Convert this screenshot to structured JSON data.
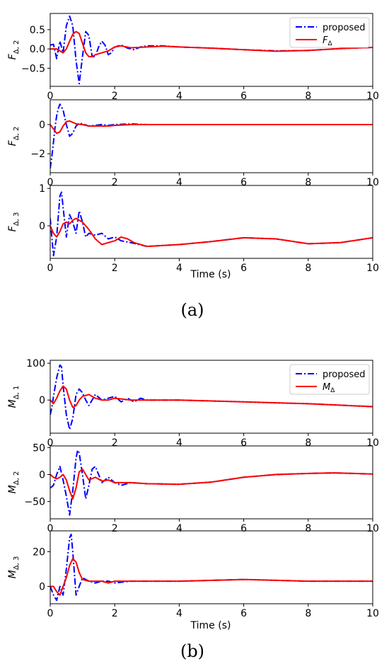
{
  "figures": [
    {
      "caption": "(a)",
      "xlabel": "Time (s)",
      "legend": {
        "position": "top-right",
        "entries": [
          "proposed",
          "F_Δ"
        ]
      },
      "panels": [
        {
          "ylabel_base": "F",
          "ylabel_sub": "Δ, 2",
          "yticks": [
            -0.5,
            0,
            0.5
          ],
          "yticklabels": [
            "−0.5",
            "0.0",
            "0.5"
          ],
          "ylim": [
            -0.97,
            0.92
          ]
        },
        {
          "ylabel_base": "F",
          "ylabel_sub": "Δ, 2",
          "yticks": [
            -2,
            0
          ],
          "yticklabels": [
            "−2",
            "0"
          ],
          "ylim": [
            -3.3,
            1.7
          ]
        },
        {
          "ylabel_base": "F",
          "ylabel_sub": "Δ, 3",
          "yticks": [
            0,
            1
          ],
          "yticklabels": [
            "0",
            "1"
          ],
          "ylim": [
            -0.87,
            1.08
          ]
        }
      ]
    },
    {
      "caption": "(b)",
      "xlabel": "Time (s)",
      "legend": {
        "position": "top-right",
        "entries": [
          "proposed",
          "M_Δ"
        ]
      },
      "panels": [
        {
          "ylabel_base": "M",
          "ylabel_sub": "Δ, 1",
          "yticks": [
            0,
            100
          ],
          "yticklabels": [
            "0",
            "100"
          ],
          "ylim": [
            -90,
            108
          ]
        },
        {
          "ylabel_base": "M",
          "ylabel_sub": "Δ, 2",
          "yticks": [
            -50,
            0,
            50
          ],
          "yticklabels": [
            "−50",
            "0",
            "50"
          ],
          "ylim": [
            -82,
            53
          ]
        },
        {
          "ylabel_base": "M",
          "ylabel_sub": "Δ, 3",
          "yticks": [
            0,
            20
          ],
          "yticklabels": [
            "0",
            "20"
          ],
          "ylim": [
            -10,
            32
          ]
        }
      ]
    }
  ],
  "chart_data": [
    {
      "type": "line",
      "figure": "a",
      "panel": 1,
      "xlim": [
        0,
        10
      ],
      "ylim": [
        -0.97,
        0.92
      ],
      "xticks": [
        0,
        2,
        4,
        6,
        8,
        10
      ],
      "series": [
        {
          "name": "proposed",
          "color": "#0000ff",
          "style": "dashdot",
          "x": [
            0,
            0.1,
            0.2,
            0.3,
            0.4,
            0.5,
            0.6,
            0.7,
            0.8,
            0.9,
            1.0,
            1.1,
            1.2,
            1.3,
            1.4,
            1.5,
            1.6,
            1.7,
            1.8,
            1.9,
            2.0,
            2.2,
            2.4,
            2.6,
            2.8,
            3.0,
            3.5,
            4.0,
            5.0,
            6.0,
            7.0,
            8.0,
            9.0,
            10.0
          ],
          "y": [
            0.1,
            0.12,
            -0.25,
            0.2,
            -0.1,
            0.6,
            0.85,
            0.6,
            -0.3,
            -0.9,
            -0.2,
            0.45,
            0.35,
            -0.2,
            -0.2,
            0.05,
            0.2,
            0.1,
            -0.15,
            -0.1,
            0.05,
            0.1,
            0.02,
            -0.02,
            0.05,
            0.08,
            0.08,
            0.05,
            0.02,
            -0.02,
            -0.05,
            -0.04,
            0.01,
            0.04
          ]
        },
        {
          "name": "F_Δ",
          "color": "#ff0000",
          "style": "solid",
          "x": [
            0,
            0.2,
            0.4,
            0.5,
            0.6,
            0.7,
            0.8,
            0.9,
            1.0,
            1.1,
            1.2,
            1.3,
            1.4,
            1.6,
            1.8,
            2.0,
            2.2,
            2.5,
            3.0,
            3.5,
            4.0,
            5.0,
            6.0,
            7.0,
            8.0,
            9.0,
            10.0
          ],
          "y": [
            0,
            0,
            -0.1,
            0,
            0.2,
            0.38,
            0.45,
            0.4,
            0.15,
            -0.1,
            -0.2,
            -0.2,
            -0.15,
            -0.1,
            -0.05,
            0.05,
            0.08,
            0.03,
            0.05,
            0.07,
            0.05,
            0.02,
            -0.02,
            -0.06,
            -0.04,
            0.01,
            0.04
          ]
        }
      ]
    },
    {
      "type": "line",
      "figure": "a",
      "panel": 2,
      "xlim": [
        0,
        10
      ],
      "ylim": [
        -3.3,
        1.7
      ],
      "xticks": [
        0,
        2,
        4,
        6,
        8,
        10
      ],
      "series": [
        {
          "name": "proposed",
          "color": "#0000ff",
          "style": "dashdot",
          "x": [
            0,
            0.05,
            0.1,
            0.15,
            0.2,
            0.25,
            0.3,
            0.4,
            0.5,
            0.6,
            0.7,
            0.8,
            0.9,
            1.0,
            1.2,
            1.4,
            1.6,
            1.8,
            2.0,
            2.5,
            3.0,
            4.0,
            6.0,
            8.0,
            10.0
          ],
          "y": [
            -3.0,
            -2.2,
            -1.2,
            -0.2,
            0.6,
            1.1,
            1.4,
            1.0,
            0.0,
            -0.8,
            -0.6,
            -0.1,
            0.1,
            0.05,
            -0.1,
            -0.05,
            0.0,
            -0.05,
            0.0,
            0.05,
            0.0,
            0.0,
            0.0,
            0.0,
            0.0
          ]
        },
        {
          "name": "F_Δ",
          "color": "#ff0000",
          "style": "solid",
          "x": [
            0,
            0.1,
            0.2,
            0.3,
            0.4,
            0.5,
            0.6,
            0.7,
            0.8,
            1.0,
            1.2,
            1.4,
            1.6,
            1.8,
            2.0,
            2.5,
            3.0,
            4.0,
            6.0,
            8.0,
            10.0
          ],
          "y": [
            0,
            -0.3,
            -0.6,
            -0.5,
            -0.1,
            0.2,
            0.25,
            0.15,
            0.05,
            0.0,
            -0.1,
            -0.1,
            -0.1,
            -0.1,
            -0.05,
            0.0,
            0.0,
            0.0,
            0.0,
            0.0,
            0.0
          ]
        }
      ]
    },
    {
      "type": "line",
      "figure": "a",
      "panel": 3,
      "xlim": [
        0,
        10
      ],
      "ylim": [
        -0.87,
        1.08
      ],
      "xticks": [
        0,
        2,
        4,
        6,
        8,
        10
      ],
      "series": [
        {
          "name": "proposed",
          "color": "#0000ff",
          "style": "dashdot",
          "x": [
            0,
            0.1,
            0.2,
            0.3,
            0.35,
            0.4,
            0.5,
            0.6,
            0.7,
            0.8,
            0.9,
            1.0,
            1.1,
            1.2,
            1.4,
            1.6,
            1.8,
            2.0,
            2.2,
            2.5,
            3.0,
            4.0,
            5.0,
            6.0,
            7.0,
            8.0,
            9.0,
            10.0
          ],
          "y": [
            0.2,
            -0.8,
            -0.3,
            0.8,
            0.9,
            0.5,
            -0.3,
            0.3,
            0.1,
            -0.2,
            0.4,
            0.1,
            -0.3,
            -0.2,
            -0.25,
            -0.2,
            -0.35,
            -0.3,
            -0.4,
            -0.45,
            -0.55,
            -0.5,
            -0.42,
            -0.32,
            -0.35,
            -0.48,
            -0.45,
            -0.32
          ]
        },
        {
          "name": "F_Δ",
          "color": "#ff0000",
          "style": "solid",
          "x": [
            0,
            0.1,
            0.2,
            0.3,
            0.4,
            0.5,
            0.6,
            0.7,
            0.8,
            0.9,
            1.0,
            1.2,
            1.4,
            1.6,
            1.8,
            2.0,
            2.2,
            2.4,
            2.6,
            3.0,
            4.0,
            5.0,
            6.0,
            7.0,
            8.0,
            9.0,
            10.0
          ],
          "y": [
            0,
            -0.2,
            -0.3,
            -0.15,
            0.05,
            0.1,
            0.05,
            0.15,
            0.2,
            0.15,
            0.1,
            -0.1,
            -0.35,
            -0.5,
            -0.45,
            -0.4,
            -0.3,
            -0.35,
            -0.45,
            -0.55,
            -0.5,
            -0.42,
            -0.32,
            -0.35,
            -0.48,
            -0.45,
            -0.32
          ]
        }
      ]
    },
    {
      "type": "line",
      "figure": "b",
      "panel": 1,
      "xlim": [
        0,
        10
      ],
      "ylim": [
        -90,
        108
      ],
      "xticks": [
        0,
        2,
        4,
        6,
        8,
        10
      ],
      "series": [
        {
          "name": "proposed",
          "color": "#0000ff",
          "style": "dashdot",
          "x": [
            0,
            0.05,
            0.1,
            0.2,
            0.3,
            0.35,
            0.4,
            0.5,
            0.6,
            0.7,
            0.8,
            0.9,
            1.0,
            1.1,
            1.2,
            1.4,
            1.6,
            1.8,
            2.0,
            2.2,
            2.4,
            2.6,
            2.8,
            3.0,
            4.0,
            6.0,
            8.0,
            10.0
          ],
          "y": [
            -40,
            -20,
            10,
            60,
            95,
            90,
            40,
            -40,
            -80,
            -50,
            15,
            30,
            20,
            0,
            -15,
            15,
            0,
            5,
            10,
            -5,
            5,
            -5,
            5,
            0,
            0,
            -5,
            -10,
            -18
          ]
        },
        {
          "name": "M_Δ",
          "color": "#ff0000",
          "style": "solid",
          "x": [
            0,
            0.1,
            0.2,
            0.3,
            0.4,
            0.5,
            0.6,
            0.7,
            0.8,
            0.9,
            1.0,
            1.2,
            1.4,
            1.6,
            1.8,
            2.0,
            2.5,
            3.0,
            4.0,
            6.0,
            8.0,
            10.0
          ],
          "y": [
            0,
            -10,
            5,
            25,
            38,
            30,
            0,
            -20,
            -15,
            0,
            10,
            15,
            5,
            0,
            0,
            5,
            0,
            0,
            0,
            -5,
            -10,
            -18
          ]
        }
      ]
    },
    {
      "type": "line",
      "figure": "b",
      "panel": 2,
      "xlim": [
        0,
        10
      ],
      "ylim": [
        -82,
        53
      ],
      "xticks": [
        0,
        2,
        4,
        6,
        8,
        10
      ],
      "series": [
        {
          "name": "proposed",
          "color": "#0000ff",
          "style": "dashdot",
          "x": [
            0,
            0.1,
            0.2,
            0.3,
            0.4,
            0.5,
            0.6,
            0.7,
            0.8,
            0.85,
            0.9,
            1.0,
            1.1,
            1.2,
            1.3,
            1.4,
            1.5,
            1.6,
            1.7,
            1.8,
            2.0,
            2.2,
            2.5,
            3.0,
            4.0,
            5.0,
            6.0,
            7.0,
            8.0,
            8.8,
            10.0
          ],
          "y": [
            -25,
            -20,
            0,
            15,
            -10,
            -40,
            -75,
            -30,
            30,
            45,
            40,
            0,
            -45,
            -20,
            10,
            15,
            0,
            -15,
            -10,
            -5,
            -15,
            -20,
            -15,
            -17,
            -18,
            -14,
            -5,
            0,
            2,
            3,
            1
          ]
        },
        {
          "name": "M_Δ",
          "color": "#ff0000",
          "style": "solid",
          "x": [
            0,
            0.1,
            0.2,
            0.3,
            0.4,
            0.5,
            0.6,
            0.7,
            0.8,
            0.9,
            1.0,
            1.2,
            1.4,
            1.6,
            1.8,
            2.0,
            2.5,
            3.0,
            4.0,
            5.0,
            6.0,
            7.0,
            8.0,
            8.8,
            10.0
          ],
          "y": [
            0,
            -5,
            -8,
            -5,
            0,
            -10,
            -30,
            -45,
            -25,
            5,
            10,
            -10,
            -5,
            -12,
            -10,
            -15,
            -15,
            -17,
            -18,
            -14,
            -5,
            0,
            2,
            3,
            1
          ]
        }
      ]
    },
    {
      "type": "line",
      "figure": "b",
      "panel": 3,
      "xlim": [
        0,
        10
      ],
      "ylim": [
        -10,
        32
      ],
      "xticks": [
        0,
        2,
        4,
        6,
        8,
        10
      ],
      "series": [
        {
          "name": "proposed",
          "color": "#0000ff",
          "style": "dashdot",
          "x": [
            0,
            0.1,
            0.2,
            0.3,
            0.4,
            0.5,
            0.6,
            0.65,
            0.7,
            0.8,
            0.9,
            1.0,
            1.2,
            1.4,
            1.6,
            1.8,
            2.0,
            2.5,
            3.0,
            4.0,
            6.0,
            8.0,
            10.0
          ],
          "y": [
            0,
            -5,
            -8,
            0,
            -5,
            10,
            28,
            30,
            20,
            -5,
            0,
            5,
            3,
            2,
            3,
            3,
            2,
            3,
            3,
            3,
            4,
            3,
            3
          ]
        },
        {
          "name": "M_Δ",
          "color": "#ff0000",
          "style": "solid",
          "x": [
            0,
            0.1,
            0.2,
            0.3,
            0.4,
            0.5,
            0.6,
            0.7,
            0.8,
            0.9,
            1.0,
            1.2,
            1.4,
            1.6,
            1.8,
            2.0,
            2.5,
            3.0,
            4.0,
            6.0,
            8.0,
            10.0
          ],
          "y": [
            0,
            0,
            -3,
            -5,
            0,
            5,
            12,
            16,
            14,
            8,
            4,
            3,
            3,
            3,
            2,
            3,
            3,
            3,
            3,
            4,
            3,
            3
          ]
        }
      ]
    }
  ]
}
